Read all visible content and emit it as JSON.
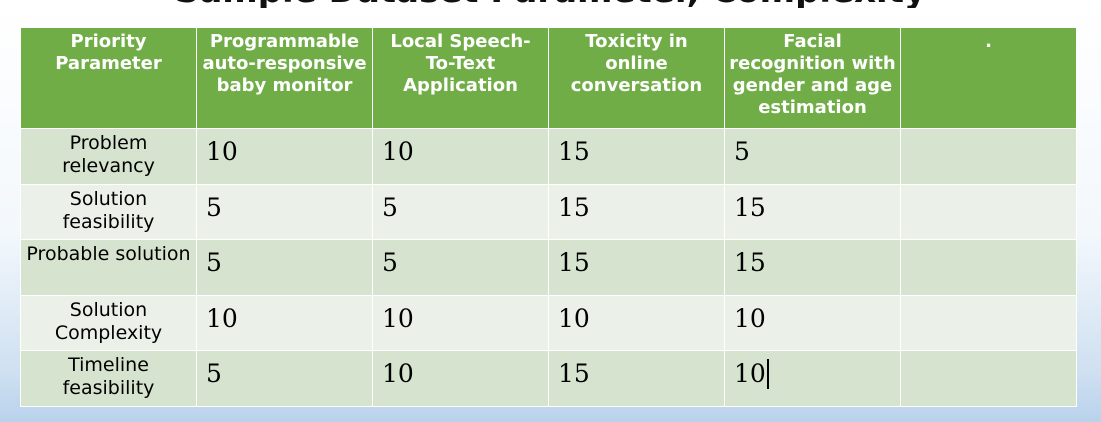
{
  "heading": "Sample Dataset Parameter, Complexity",
  "table": {
    "headers": [
      "Priority\nParameter",
      "Programmable auto-responsive baby monitor",
      "Local Speech-To-Text Application",
      "Toxicity in online conversation",
      "Facial recognition with gender and age estimation",
      "."
    ],
    "rows": [
      {
        "parameter": "Problem relevancy",
        "scores": [
          "10",
          "10",
          "15",
          "5",
          ""
        ]
      },
      {
        "parameter": "Solution feasibility",
        "scores": [
          "5",
          "5",
          "15",
          "15",
          ""
        ]
      },
      {
        "parameter": "Probable solution",
        "scores": [
          "5",
          "5",
          "15",
          "15",
          ""
        ]
      },
      {
        "parameter": "Solution Complexity",
        "scores": [
          "10",
          "10",
          "10",
          "10",
          ""
        ]
      },
      {
        "parameter": "Timeline feasibility",
        "scores": [
          "5",
          "10",
          "15",
          "10",
          ""
        ]
      }
    ]
  },
  "colors": {
    "header_bg": "#70ad47",
    "row_odd": "#d6e3cf",
    "row_even": "#ebf1e9"
  }
}
